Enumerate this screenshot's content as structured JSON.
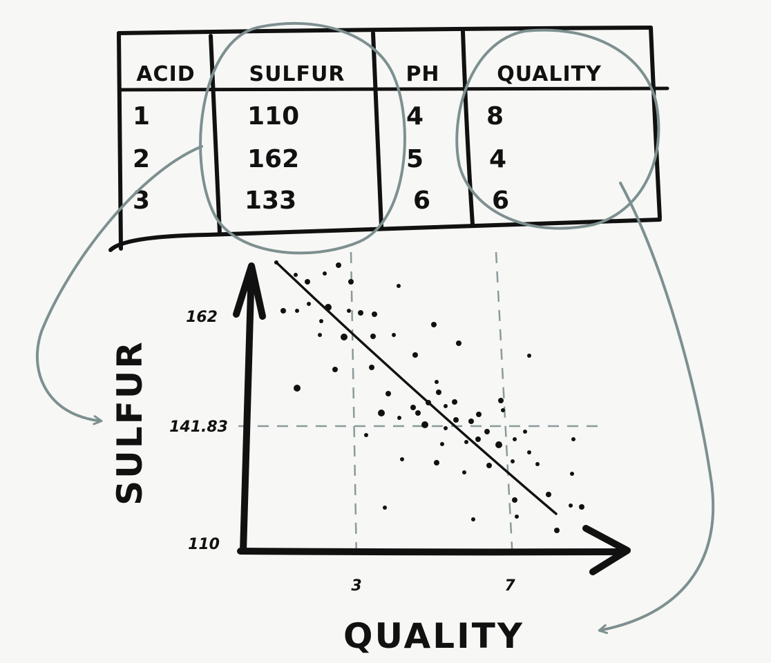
{
  "table": {
    "headers": [
      "ACID",
      "SULFUR",
      "PH",
      "QUALITY"
    ],
    "rows": [
      [
        "1",
        "110",
        "4",
        "8"
      ],
      [
        "2",
        "162",
        "5",
        "4"
      ],
      [
        "3",
        "133",
        "6",
        "6"
      ]
    ]
  },
  "chart_data": {
    "type": "scatter",
    "xlabel": "QUALITY",
    "ylabel": "SULFUR",
    "x_ticks": [
      "3",
      "7"
    ],
    "y_ticks": [
      "162",
      "141.83",
      "110"
    ],
    "reference_lines": {
      "x": [
        3,
        7
      ],
      "y": 141.83
    },
    "trend_line": {
      "from": [
        0.8,
        165
      ],
      "to": [
        8.2,
        121
      ]
    }
  },
  "colors": {
    "ink": "#111111",
    "accent": "#7d9090",
    "guide": "#8a9a9a"
  }
}
